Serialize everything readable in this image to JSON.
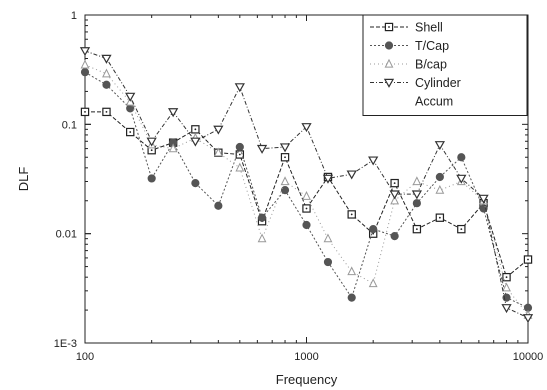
{
  "chart_data": {
    "type": "line",
    "xlabel": "Frequency",
    "ylabel": "DLF",
    "xscale": "log",
    "yscale": "log",
    "xlim": [
      100,
      10000
    ],
    "ylim": [
      0.001,
      1
    ],
    "x_ticks": [
      {
        "value": 100,
        "label": "100"
      },
      {
        "value": 1000,
        "label": "1000"
      },
      {
        "value": 10000,
        "label": "10000"
      }
    ],
    "y_ticks": [
      {
        "value": 0.001,
        "label": "1E-3"
      },
      {
        "value": 0.01,
        "label": "0.01"
      },
      {
        "value": 0.1,
        "label": "0.1"
      },
      {
        "value": 1,
        "label": "1"
      }
    ],
    "legend_position": "top-right",
    "grid": false,
    "series": [
      {
        "name": "Shell",
        "marker": "square",
        "dash": "4,2",
        "color": "#222222",
        "x": [
          100,
          125,
          160,
          200,
          250,
          315,
          400,
          500,
          630,
          800,
          1000,
          1250,
          1600,
          2000,
          2500,
          3150,
          4000,
          5000,
          6300,
          8000,
          10000
        ],
        "y": [
          0.13,
          0.13,
          0.085,
          0.058,
          0.068,
          0.09,
          0.055,
          0.053,
          0.013,
          0.05,
          0.017,
          0.033,
          0.015,
          0.01,
          0.029,
          0.011,
          0.014,
          0.011,
          0.019,
          0.004,
          0.0058
        ]
      },
      {
        "name": "T/Cap",
        "marker": "circle",
        "dash": "2,2",
        "color": "#555555",
        "x": [
          100,
          125,
          160,
          200,
          250,
          315,
          400,
          500,
          630,
          800,
          1000,
          1250,
          1600,
          2000,
          2500,
          3150,
          4000,
          5000,
          6300,
          8000,
          10000
        ],
        "y": [
          0.3,
          0.23,
          0.14,
          0.032,
          0.068,
          0.029,
          0.018,
          0.062,
          0.014,
          0.025,
          0.012,
          0.0055,
          0.0026,
          0.011,
          0.0095,
          0.019,
          0.033,
          0.05,
          0.017,
          0.0026,
          0.0021
        ]
      },
      {
        "name": "B/cap",
        "marker": "triangle-up",
        "dash": "1,3",
        "color": "#999999",
        "x": [
          100,
          125,
          160,
          200,
          250,
          315,
          400,
          500,
          630,
          800,
          1000,
          1250,
          1600,
          2000,
          2500,
          3150,
          4000,
          5000,
          6300,
          8000,
          10000
        ],
        "y": [
          0.35,
          0.29,
          0.16,
          0.065,
          0.06,
          0.075,
          0.055,
          0.04,
          0.009,
          0.03,
          0.022,
          0.009,
          0.0045,
          0.0035,
          0.02,
          0.03,
          0.025,
          0.03,
          0.02,
          0.0032,
          0.0018
        ]
      },
      {
        "name": "Cylinder",
        "marker": "triangle-down",
        "dash": "4,2,1,2",
        "color": "#333333",
        "x": [
          100,
          125,
          160,
          200,
          250,
          315,
          400,
          500,
          630,
          800,
          1000,
          1250,
          1600,
          2000,
          2500,
          3150,
          4000,
          5000,
          6300,
          8000,
          10000
        ],
        "y": [
          0.47,
          0.4,
          0.18,
          0.07,
          0.13,
          0.07,
          0.09,
          0.22,
          0.06,
          0.062,
          0.095,
          0.032,
          0.035,
          0.047,
          0.023,
          0.023,
          0.065,
          0.032,
          0.021,
          0.0021,
          0.0017
        ]
      },
      {
        "name": "Accum",
        "marker": "none",
        "dash": "none",
        "color": "#888888",
        "x": [],
        "y": []
      }
    ]
  }
}
